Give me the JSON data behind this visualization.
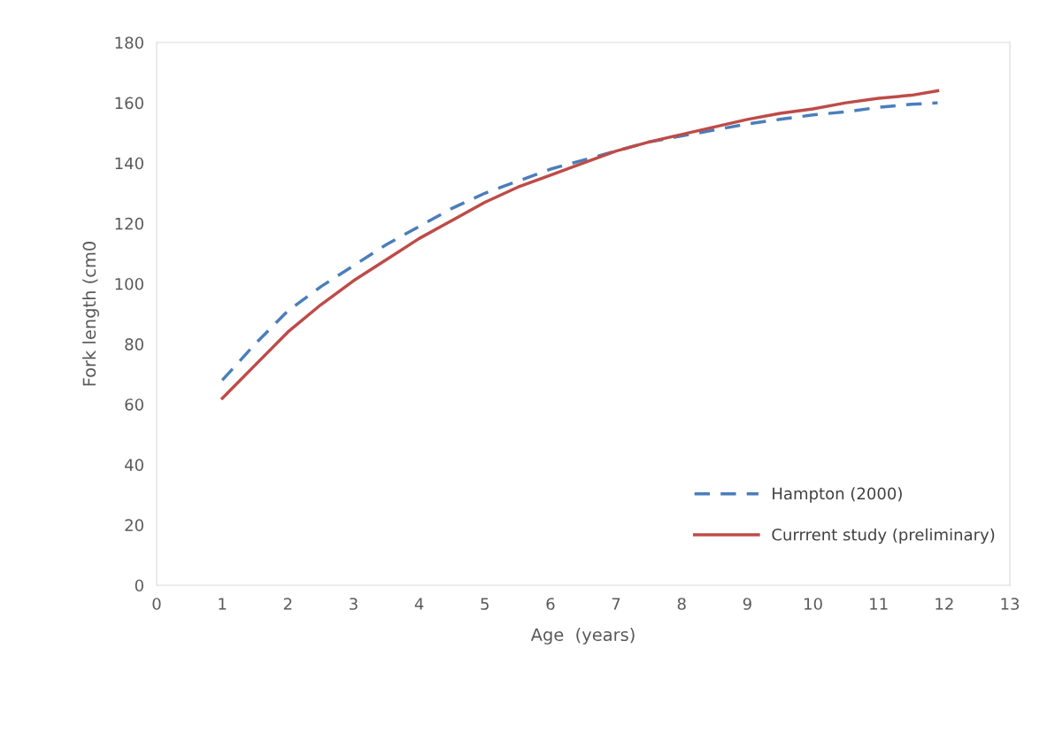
{
  "chart_data": {
    "type": "line",
    "xlabel": "Age  (years)",
    "ylabel": "Fork length (cm0",
    "xlim": [
      0,
      13
    ],
    "xticks": [
      0,
      1,
      2,
      3,
      4,
      5,
      6,
      7,
      8,
      9,
      10,
      11,
      12,
      13
    ],
    "ylim": [
      0,
      180
    ],
    "yticks": [
      0,
      20,
      40,
      60,
      80,
      100,
      120,
      140,
      160,
      180
    ],
    "grid": false,
    "legend": "bottom right",
    "series": [
      {
        "name": "Hampton (2000)",
        "color": "#4a7ebb",
        "line_style": "dashed",
        "x": [
          1,
          1.5,
          2,
          2.5,
          3,
          3.5,
          4,
          4.5,
          5,
          5.5,
          6,
          6.5,
          7,
          7.5,
          8,
          8.5,
          9,
          9.5,
          10,
          10.5,
          11,
          11.5,
          11.9
        ],
        "values": [
          68,
          80,
          91,
          99,
          106,
          113,
          119,
          125,
          130,
          134,
          138,
          141,
          144,
          147,
          149,
          151,
          153,
          154.5,
          156,
          157,
          158.5,
          159.5,
          160
        ]
      },
      {
        "name": "Currrent study (preliminary)",
        "color": "#be4b48",
        "line_style": "solid",
        "x": [
          1,
          1.5,
          2,
          2.5,
          3,
          3.5,
          4,
          4.5,
          5,
          5.5,
          6,
          6.5,
          7,
          7.5,
          8,
          8.5,
          9,
          9.5,
          10,
          10.5,
          11,
          11.5,
          11.9
        ],
        "values": [
          62,
          73,
          84,
          93,
          101,
          108,
          115,
          121,
          127,
          132,
          136,
          140,
          144,
          147,
          149.5,
          152,
          154.5,
          156.5,
          158,
          160,
          161.5,
          162.5,
          164
        ]
      }
    ]
  }
}
